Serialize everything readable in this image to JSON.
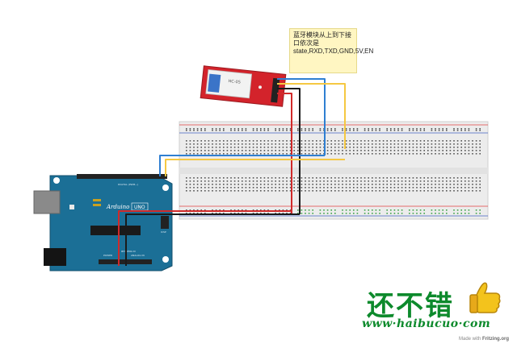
{
  "annotation": {
    "line1": "蓝牙模块从上到下接口依次是",
    "line2": "state,RXD,TXD,GND,5V,EN"
  },
  "bluetooth_module": {
    "label": "HC-05"
  },
  "arduino": {
    "brand": "Arduino",
    "model": "UNO",
    "site": "arduino.cc",
    "power_label": "POWER",
    "analog_label": "ANALOG IN",
    "digital_label": "DIGITAL (PWM~)",
    "icsp_label": "ICSP"
  },
  "watermark": {
    "title": "还不错",
    "url": "www·haibucuo·com"
  },
  "credit": {
    "prefix": "Made with",
    "tool": "Fritzing.org"
  },
  "colors": {
    "wire_blue": "#2f7fd2",
    "wire_yellow": "#f5c842",
    "wire_black": "#1a1a1a",
    "wire_red": "#d12a2a",
    "board": "#1b6f96",
    "module": "#d3232b",
    "rail_red": "#e04040",
    "rail_blue": "#4060c0"
  }
}
